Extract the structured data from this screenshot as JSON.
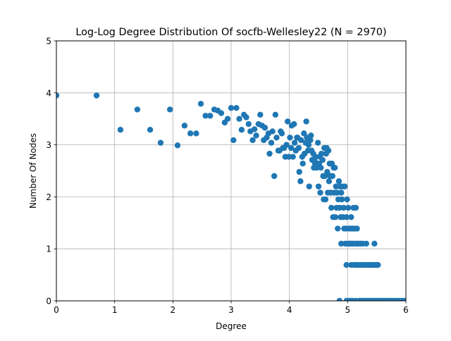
{
  "chart_data": {
    "type": "scatter",
    "title": "Log-Log Degree Distribution Of socfb-Wellesley22 (N = 2970)",
    "xlabel": "Degree",
    "ylabel": "Number Of Nodes",
    "xlim": [
      0,
      6
    ],
    "ylim": [
      0,
      5
    ],
    "xticks": [
      "0",
      "1",
      "2",
      "3",
      "4",
      "5",
      "6"
    ],
    "yticks": [
      "0",
      "1",
      "2",
      "3",
      "4",
      "5"
    ],
    "grid": true,
    "marker_color": "#1f77b4",
    "points": [
      [
        0.0,
        3.95
      ],
      [
        0.69,
        3.95
      ],
      [
        1.1,
        3.29
      ],
      [
        1.39,
        3.68
      ],
      [
        1.61,
        3.29
      ],
      [
        1.79,
        3.04
      ],
      [
        1.95,
        3.68
      ],
      [
        2.08,
        2.99
      ],
      [
        2.2,
        3.37
      ],
      [
        2.3,
        3.22
      ],
      [
        2.4,
        3.22
      ],
      [
        2.48,
        3.79
      ],
      [
        2.56,
        3.56
      ],
      [
        2.64,
        3.56
      ],
      [
        2.71,
        3.68
      ],
      [
        2.77,
        3.66
      ],
      [
        2.83,
        3.61
      ],
      [
        2.89,
        3.43
      ],
      [
        2.94,
        3.5
      ],
      [
        3.0,
        3.71
      ],
      [
        3.04,
        3.09
      ],
      [
        3.09,
        3.71
      ],
      [
        3.14,
        3.5
      ],
      [
        3.18,
        3.29
      ],
      [
        3.22,
        3.58
      ],
      [
        3.26,
        3.53
      ],
      [
        3.3,
        3.4
      ],
      [
        3.33,
        3.26
      ],
      [
        3.37,
        3.09
      ],
      [
        3.4,
        3.3
      ],
      [
        3.43,
        3.18
      ],
      [
        3.47,
        3.4
      ],
      [
        3.5,
        3.58
      ],
      [
        3.53,
        3.37
      ],
      [
        3.56,
        3.09
      ],
      [
        3.58,
        3.33
      ],
      [
        3.61,
        3.14
      ],
      [
        3.64,
        3.22
      ],
      [
        3.66,
        2.83
      ],
      [
        3.69,
        3.04
      ],
      [
        3.71,
        3.26
      ],
      [
        3.74,
        2.4
      ],
      [
        3.76,
        3.58
      ],
      [
        3.78,
        3.14
      ],
      [
        3.81,
        2.89
      ],
      [
        3.83,
        2.89
      ],
      [
        3.85,
        3.26
      ],
      [
        3.87,
        3.22
      ],
      [
        3.89,
        2.94
      ],
      [
        3.91,
        2.94
      ],
      [
        3.93,
        2.77
      ],
      [
        3.95,
        3.0
      ],
      [
        3.97,
        3.45
      ],
      [
        3.99,
        2.77
      ],
      [
        4.01,
        3.14
      ],
      [
        4.03,
        2.94
      ],
      [
        4.04,
        3.37
      ],
      [
        4.06,
        2.77
      ],
      [
        4.08,
        3.4
      ],
      [
        4.09,
        3.04
      ],
      [
        4.11,
        2.89
      ],
      [
        4.13,
        3.14
      ],
      [
        4.14,
        3.14
      ],
      [
        4.16,
        2.94
      ],
      [
        4.17,
        2.48
      ],
      [
        4.19,
        2.3
      ],
      [
        4.2,
        3.09
      ],
      [
        4.22,
        2.77
      ],
      [
        4.23,
        2.64
      ],
      [
        4.25,
        3.22
      ],
      [
        4.26,
        2.83
      ],
      [
        4.28,
        3.04
      ],
      [
        4.29,
        3.45
      ],
      [
        4.3,
        3.14
      ],
      [
        4.32,
        2.89
      ],
      [
        4.33,
        3.0
      ],
      [
        4.34,
        2.2
      ],
      [
        4.36,
        3.09
      ],
      [
        4.37,
        3.18
      ],
      [
        4.38,
        2.89
      ],
      [
        4.39,
        2.71
      ],
      [
        4.41,
        2.83
      ],
      [
        4.42,
        2.56
      ],
      [
        4.43,
        2.71
      ],
      [
        4.44,
        2.64
      ],
      [
        4.45,
        2.77
      ],
      [
        4.47,
        2.56
      ],
      [
        4.48,
        2.64
      ],
      [
        4.49,
        3.04
      ],
      [
        4.5,
        2.2
      ],
      [
        4.51,
        2.64
      ],
      [
        4.52,
        2.77
      ],
      [
        4.53,
        2.08
      ],
      [
        4.54,
        2.56
      ],
      [
        4.55,
        2.83
      ],
      [
        4.57,
        2.71
      ],
      [
        4.58,
        2.4
      ],
      [
        4.59,
        1.95
      ],
      [
        4.6,
        2.94
      ],
      [
        4.61,
        2.4
      ],
      [
        4.62,
        1.95
      ],
      [
        4.63,
        2.83
      ],
      [
        4.64,
        2.94
      ],
      [
        4.65,
        2.48
      ],
      [
        4.66,
        2.08
      ],
      [
        4.67,
        2.89
      ],
      [
        4.68,
        2.3
      ],
      [
        4.69,
        2.64
      ],
      [
        4.7,
        2.4
      ],
      [
        4.71,
        2.08
      ],
      [
        4.72,
        1.79
      ],
      [
        4.73,
        2.64
      ],
      [
        4.74,
        2.4
      ],
      [
        4.75,
        1.61
      ],
      [
        4.76,
        2.56
      ],
      [
        4.77,
        2.08
      ],
      [
        4.78,
        2.56
      ],
      [
        4.79,
        1.61
      ],
      [
        4.8,
        2.2
      ],
      [
        4.81,
        1.79
      ],
      [
        4.82,
        2.08
      ],
      [
        4.83,
        1.39
      ],
      [
        4.84,
        1.95
      ],
      [
        4.85,
        2.3
      ],
      [
        4.86,
        1.79
      ],
      [
        4.87,
        2.2
      ],
      [
        4.88,
        1.61
      ],
      [
        4.89,
        2.08
      ],
      [
        4.89,
        1.1
      ],
      [
        4.9,
        1.95
      ],
      [
        4.91,
        2.2
      ],
      [
        4.92,
        1.61
      ],
      [
        4.93,
        1.79
      ],
      [
        4.94,
        1.39
      ],
      [
        4.95,
        2.2
      ],
      [
        4.96,
        1.1
      ],
      [
        4.97,
        1.39
      ],
      [
        4.98,
        1.61
      ],
      [
        4.98,
        0.69
      ],
      [
        4.99,
        1.95
      ],
      [
        5.0,
        1.1
      ],
      [
        5.01,
        1.79
      ],
      [
        5.02,
        1.39
      ],
      [
        5.03,
        1.1
      ],
      [
        5.04,
        1.39
      ],
      [
        5.05,
        1.1
      ],
      [
        5.06,
        1.61
      ],
      [
        5.06,
        0.69
      ],
      [
        5.07,
        1.39
      ],
      [
        5.08,
        1.1
      ],
      [
        5.09,
        1.39
      ],
      [
        5.1,
        1.79
      ],
      [
        5.11,
        0.69
      ],
      [
        5.11,
        1.1
      ],
      [
        5.12,
        1.39
      ],
      [
        5.13,
        0.69
      ],
      [
        5.14,
        1.79
      ],
      [
        5.15,
        1.1
      ],
      [
        5.16,
        1.39
      ],
      [
        5.16,
        0.69
      ],
      [
        5.18,
        1.1
      ],
      [
        5.2,
        0.69
      ],
      [
        5.22,
        1.1
      ],
      [
        5.24,
        0.69
      ],
      [
        5.26,
        1.1
      ],
      [
        5.28,
        0.69
      ],
      [
        5.3,
        0.69
      ],
      [
        5.32,
        1.1
      ],
      [
        5.34,
        0.69
      ],
      [
        5.36,
        0.69
      ],
      [
        5.38,
        0.69
      ],
      [
        5.4,
        0.69
      ],
      [
        5.42,
        0.69
      ],
      [
        5.44,
        0.69
      ],
      [
        5.46,
        1.1
      ],
      [
        5.48,
        0.69
      ],
      [
        5.5,
        0.69
      ],
      [
        5.52,
        0.69
      ],
      [
        4.86,
        0.0
      ],
      [
        4.98,
        0.0
      ],
      [
        5.03,
        0.0
      ],
      [
        5.06,
        0.0
      ],
      [
        5.09,
        0.0
      ],
      [
        5.14,
        0.0
      ],
      [
        5.2,
        0.0
      ],
      [
        5.23,
        0.0
      ],
      [
        5.26,
        0.0
      ],
      [
        5.29,
        0.0
      ],
      [
        5.32,
        0.0
      ],
      [
        5.35,
        0.0
      ],
      [
        5.38,
        0.0
      ],
      [
        5.41,
        0.0
      ],
      [
        5.44,
        0.0
      ],
      [
        5.47,
        0.0
      ],
      [
        5.5,
        0.0
      ],
      [
        5.53,
        0.0
      ],
      [
        5.56,
        0.0
      ],
      [
        5.59,
        0.0
      ],
      [
        5.62,
        0.0
      ],
      [
        5.65,
        0.0
      ],
      [
        5.68,
        0.0
      ],
      [
        5.71,
        0.0
      ],
      [
        5.75,
        0.0
      ],
      [
        5.79,
        0.0
      ],
      [
        5.84,
        0.0
      ],
      [
        5.88,
        0.0
      ],
      [
        5.93,
        0.0
      ],
      [
        5.97,
        0.0
      ]
    ]
  }
}
